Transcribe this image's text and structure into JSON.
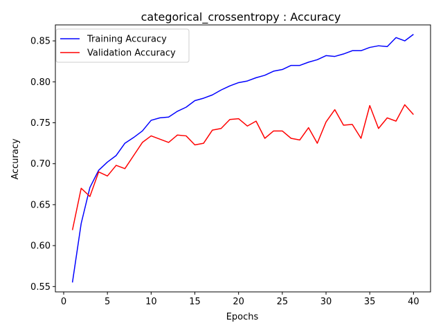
{
  "chart_data": {
    "type": "line",
    "title": "categorical_crossentropy : Accuracy",
    "xlabel": "Epochs",
    "ylabel": "Accuracy",
    "xlim": [
      -0.95,
      41.95
    ],
    "ylim": [
      0.5435,
      0.8695
    ],
    "x_ticks": [
      0,
      5,
      10,
      15,
      20,
      25,
      30,
      35,
      40
    ],
    "x_tick_labels": [
      "0",
      "5",
      "10",
      "15",
      "20",
      "25",
      "30",
      "35",
      "40"
    ],
    "y_ticks": [
      0.55,
      0.6,
      0.65,
      0.7,
      0.75,
      0.8,
      0.85
    ],
    "y_tick_labels": [
      "0.55",
      "0.60",
      "0.65",
      "0.70",
      "0.75",
      "0.80",
      "0.85"
    ],
    "grid": false,
    "legend_position": "top-left",
    "x": [
      1,
      2,
      3,
      4,
      5,
      6,
      7,
      8,
      9,
      10,
      11,
      12,
      13,
      14,
      15,
      16,
      17,
      18,
      19,
      20,
      21,
      22,
      23,
      24,
      25,
      26,
      27,
      28,
      29,
      30,
      31,
      32,
      33,
      34,
      35,
      36,
      37,
      38,
      39,
      40
    ],
    "series": [
      {
        "name": "Training Accuracy",
        "color": "#0000ff",
        "values": [
          0.555,
          0.627,
          0.671,
          0.692,
          0.702,
          0.71,
          0.725,
          0.732,
          0.74,
          0.753,
          0.756,
          0.757,
          0.764,
          0.769,
          0.777,
          0.78,
          0.784,
          0.79,
          0.795,
          0.799,
          0.801,
          0.805,
          0.808,
          0.813,
          0.815,
          0.82,
          0.82,
          0.824,
          0.827,
          0.832,
          0.831,
          0.834,
          0.838,
          0.838,
          0.842,
          0.844,
          0.843,
          0.854,
          0.85,
          0.858
        ]
      },
      {
        "name": "Validation Accuracy",
        "color": "#ff0000",
        "values": [
          0.619,
          0.67,
          0.66,
          0.69,
          0.685,
          0.698,
          0.694,
          0.71,
          0.726,
          0.734,
          0.73,
          0.726,
          0.735,
          0.734,
          0.723,
          0.725,
          0.741,
          0.743,
          0.754,
          0.755,
          0.746,
          0.752,
          0.731,
          0.74,
          0.74,
          0.731,
          0.729,
          0.744,
          0.725,
          0.751,
          0.766,
          0.747,
          0.748,
          0.731,
          0.771,
          0.743,
          0.756,
          0.752,
          0.772,
          0.76
        ]
      }
    ]
  }
}
